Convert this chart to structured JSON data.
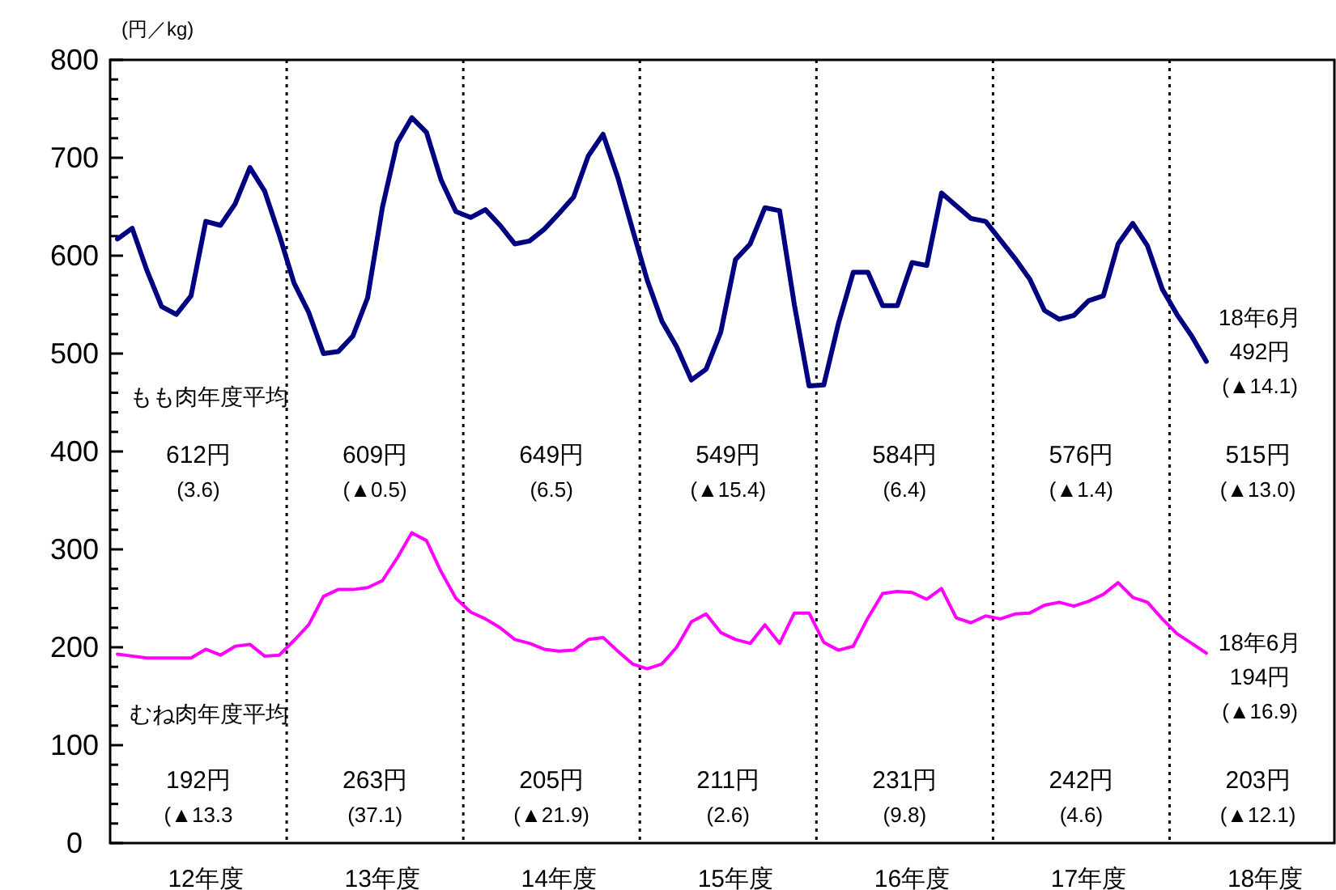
{
  "chart_data": {
    "type": "line",
    "ylabel": "(円／kg)",
    "categories": [
      null,
      null,
      null,
      null,
      null,
      null,
      "12年度",
      null,
      null,
      null,
      null,
      null,
      null,
      null,
      null,
      null,
      null,
      null,
      "13年度",
      null,
      null,
      null,
      null,
      null,
      null,
      null,
      null,
      null,
      null,
      null,
      "14年度",
      null,
      null,
      null,
      null,
      null,
      null,
      null,
      null,
      null,
      null,
      null,
      "15年度",
      null,
      null,
      null,
      null,
      null,
      null,
      null,
      null,
      null,
      null,
      null,
      "16年度",
      null,
      null,
      null,
      null,
      null,
      null,
      null,
      null,
      null,
      null,
      null,
      "17年度",
      null,
      null,
      null,
      null,
      null,
      null,
      null,
      null,
      null,
      null,
      null,
      "18年度",
      null,
      null,
      null,
      null,
      null
    ],
    "series": [
      {
        "color": "#000080",
        "values": [
          617,
          628,
          585,
          548,
          540,
          559,
          635,
          631,
          653,
          690,
          666,
          621,
          572,
          542,
          500,
          502,
          518,
          557,
          649,
          715,
          741,
          726,
          677,
          645,
          639,
          647,
          631,
          612,
          615,
          627,
          643,
          660,
          702,
          724,
          680,
          627,
          575,
          533,
          507,
          473,
          484,
          522,
          596,
          612,
          649,
          646,
          550,
          467,
          468,
          531,
          583,
          583,
          549,
          549,
          593,
          590,
          664,
          651,
          638,
          635,
          616,
          597,
          576,
          544,
          535,
          539,
          554,
          559,
          612,
          633,
          610,
          566,
          540,
          518,
          492,
          null,
          null,
          null,
          null,
          null,
          null,
          null,
          null,
          null
        ]
      },
      {
        "color": "#ff00ff",
        "values": [
          193,
          191,
          189,
          189,
          189,
          189,
          198,
          192,
          201,
          203,
          191,
          192,
          207,
          223,
          252,
          259,
          259,
          261,
          268,
          291,
          317,
          309,
          277,
          250,
          236,
          229,
          220,
          208,
          204,
          198,
          196,
          197,
          208,
          210,
          196,
          183,
          178,
          183,
          200,
          226,
          234,
          215,
          208,
          204,
          223,
          204,
          235,
          235,
          205,
          197,
          201,
          230,
          255,
          257,
          256,
          249,
          260,
          230,
          225,
          232,
          229,
          234,
          235,
          243,
          246,
          242,
          247,
          254,
          266,
          251,
          246,
          229,
          214,
          204,
          194,
          null,
          null,
          null,
          null,
          null,
          null,
          null,
          null,
          null
        ]
      }
    ],
    "ylim": [
      0,
      800
    ],
    "yticks": [
      0,
      {
        "value": 20,
        "label": null
      },
      {
        "value": 40,
        "label": null
      },
      {
        "value": 60,
        "label": null
      },
      {
        "value": 80,
        "label": null
      },
      100,
      {
        "value": 120,
        "label": null
      },
      {
        "value": 140,
        "label": null
      },
      {
        "value": 160,
        "label": null
      },
      {
        "value": 180,
        "label": null
      },
      200,
      {
        "value": 220,
        "label": null
      },
      {
        "value": 240,
        "label": null
      },
      {
        "value": 260,
        "label": null
      },
      {
        "value": 280,
        "label": null
      },
      300,
      {
        "value": 320,
        "label": null
      },
      {
        "value": 340,
        "label": null
      },
      {
        "value": 360,
        "label": null
      },
      {
        "value": 380,
        "label": null
      },
      400,
      {
        "value": 420,
        "label": null
      },
      {
        "value": 440,
        "label": null
      },
      {
        "value": 460,
        "label": null
      },
      {
        "value": 480,
        "label": null
      },
      500,
      {
        "value": 520,
        "label": null
      },
      {
        "value": 540,
        "label": null
      },
      {
        "value": 560,
        "label": null
      },
      {
        "value": 580,
        "label": null
      },
      600,
      {
        "value": 620,
        "label": null
      },
      {
        "value": 640,
        "label": null
      },
      {
        "value": 660,
        "label": null
      },
      {
        "value": 680,
        "label": null
      },
      700,
      {
        "value": 720,
        "label": null
      },
      {
        "value": 740,
        "label": null
      },
      {
        "value": 760,
        "label": null
      },
      {
        "value": 780,
        "label": null
      },
      800
    ],
    "grid": false,
    "line_style": "solid",
    "marker": "none",
    "annotations": [
      "もも肉年度平均",
      "612円",
      "(3.6)",
      "609円",
      "(▲0.5)",
      "649円",
      "(6.5)",
      "549円",
      "(▲15.4)",
      "584円",
      "(6.4)",
      "576円",
      "(▲1.4)",
      "515円",
      "(▲13.0)",
      "むね肉年度平均",
      "192円",
      "(▲13.3",
      "263円",
      "(37.1)",
      "205円",
      "(▲21.9)",
      "211円",
      "(2.6)",
      "231円",
      "(9.8)",
      "242円",
      "(4.6)",
      "203円",
      "(▲12.1)",
      "18年6月",
      "492円",
      "(▲14.1)",
      "18年6月",
      "194円",
      "(▲16.9)"
    ]
  }
}
